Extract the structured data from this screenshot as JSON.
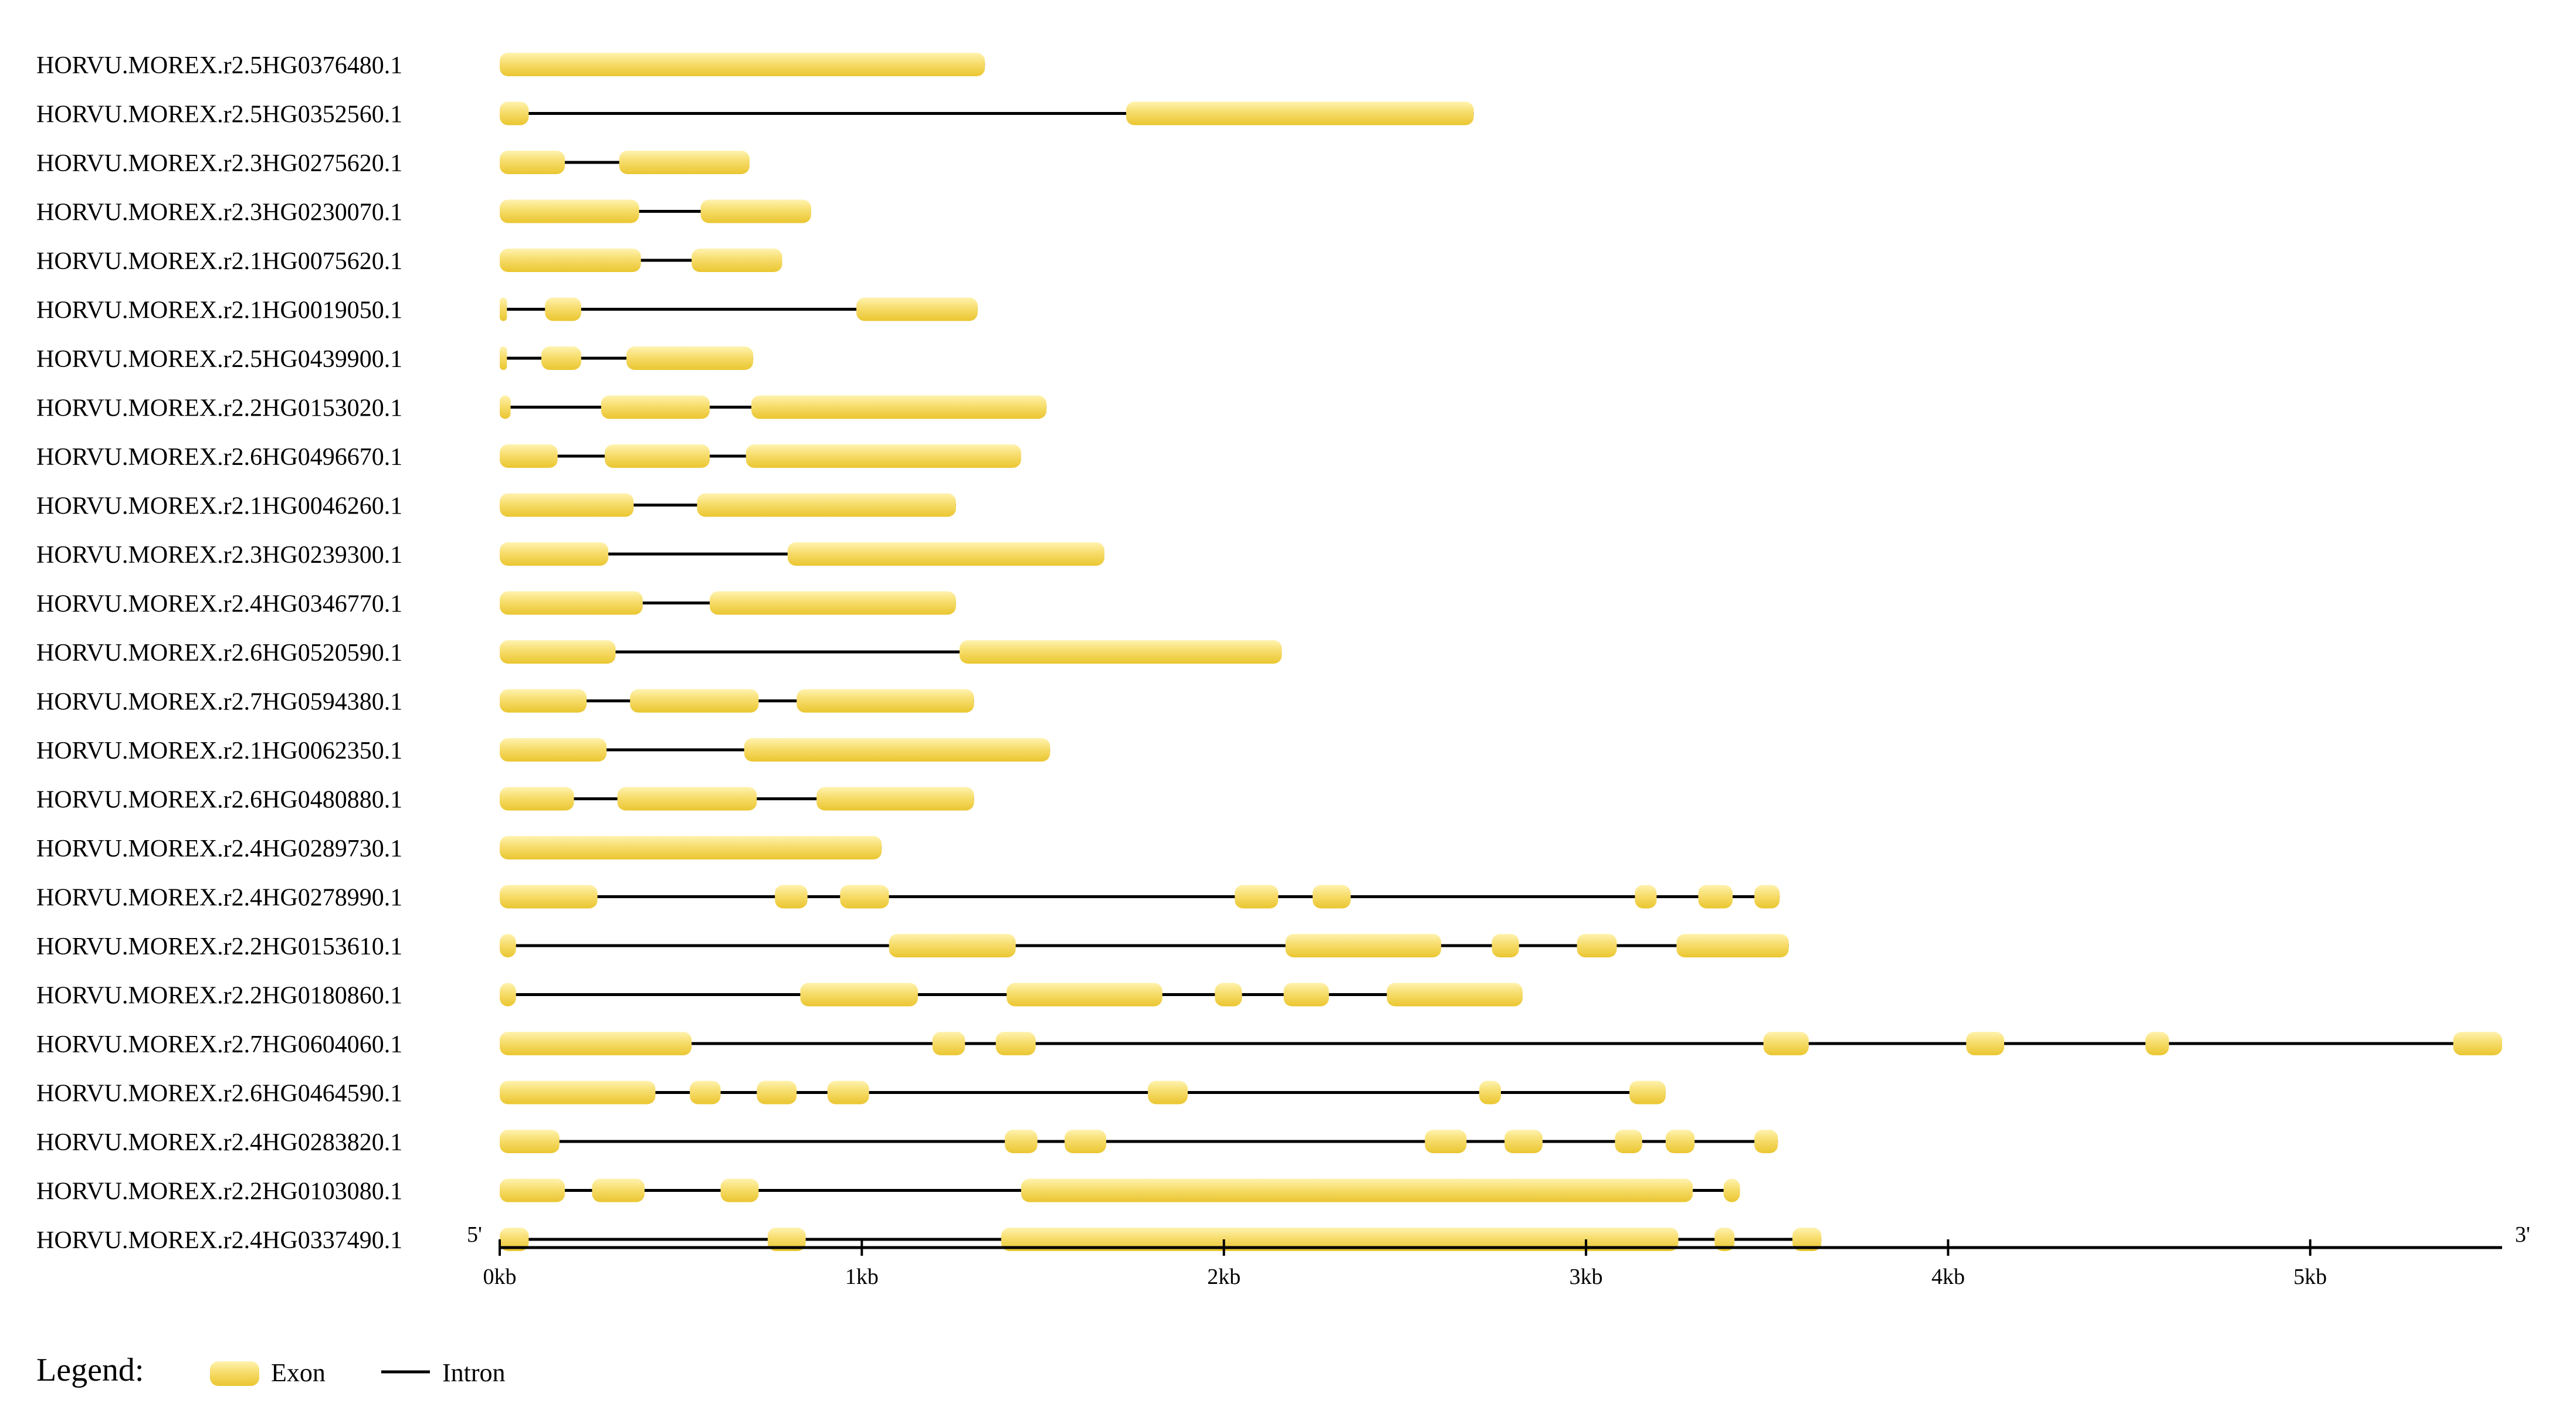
{
  "colors": {
    "exon_light": "#FFF3B0",
    "exon_mid": "#F7DD6C",
    "exon_dark": "#EAC630",
    "intron": "#000000",
    "axis": "#000000",
    "text": "#000000"
  },
  "axis": {
    "start_label": "5'",
    "end_label": "3'",
    "unit": "kb",
    "ticks": [
      {
        "value": 0,
        "label": "0kb"
      },
      {
        "value": 1000,
        "label": "1kb"
      },
      {
        "value": 2000,
        "label": "2kb"
      },
      {
        "value": 3000,
        "label": "3kb"
      },
      {
        "value": 4000,
        "label": "4kb"
      },
      {
        "value": 5000,
        "label": "5kb"
      }
    ],
    "max_bp": 5530
  },
  "legend": {
    "title": "Legend:",
    "exon_label": "Exon",
    "intron_label": "Intron"
  },
  "genes": [
    {
      "name": "HORVU.MOREX.r2.5HG0376480.1",
      "length": 1340,
      "exons": [
        [
          0,
          1340
        ]
      ]
    },
    {
      "name": "HORVU.MOREX.r2.5HG0352560.1",
      "length": 2690,
      "exons": [
        [
          0,
          80
        ],
        [
          1730,
          2690
        ]
      ]
    },
    {
      "name": "HORVU.MOREX.r2.3HG0275620.1",
      "length": 690,
      "exons": [
        [
          0,
          180
        ],
        [
          330,
          690
        ]
      ]
    },
    {
      "name": "HORVU.MOREX.r2.3HG0230070.1",
      "length": 860,
      "exons": [
        [
          0,
          385
        ],
        [
          555,
          860
        ]
      ]
    },
    {
      "name": "HORVU.MOREX.r2.1HG0075620.1",
      "length": 780,
      "exons": [
        [
          0,
          390
        ],
        [
          530,
          780
        ]
      ]
    },
    {
      "name": "HORVU.MOREX.r2.1HG0019050.1",
      "length": 1320,
      "exons": [
        [
          0,
          20
        ],
        [
          125,
          225
        ],
        [
          985,
          1320
        ]
      ]
    },
    {
      "name": "HORVU.MOREX.r2.5HG0439900.1",
      "length": 700,
      "exons": [
        [
          0,
          20
        ],
        [
          115,
          225
        ],
        [
          350,
          700
        ]
      ]
    },
    {
      "name": "HORVU.MOREX.r2.2HG0153020.1",
      "length": 1510,
      "exons": [
        [
          0,
          30
        ],
        [
          280,
          580
        ],
        [
          695,
          1510
        ]
      ]
    },
    {
      "name": "HORVU.MOREX.r2.6HG0496670.1",
      "length": 1440,
      "exons": [
        [
          0,
          160
        ],
        [
          290,
          580
        ],
        [
          680,
          1440
        ]
      ]
    },
    {
      "name": "HORVU.MOREX.r2.1HG0046260.1",
      "length": 1260,
      "exons": [
        [
          0,
          370
        ],
        [
          545,
          1260
        ]
      ]
    },
    {
      "name": "HORVU.MOREX.r2.3HG0239300.1",
      "length": 1670,
      "exons": [
        [
          0,
          300
        ],
        [
          795,
          1670
        ]
      ]
    },
    {
      "name": "HORVU.MOREX.r2.4HG0346770.1",
      "length": 1260,
      "exons": [
        [
          0,
          395
        ],
        [
          580,
          1260
        ]
      ]
    },
    {
      "name": "HORVU.MOREX.r2.6HG0520590.1",
      "length": 2160,
      "exons": [
        [
          0,
          320
        ],
        [
          1270,
          2160
        ]
      ]
    },
    {
      "name": "HORVU.MOREX.r2.7HG0594380.1",
      "length": 1310,
      "exons": [
        [
          0,
          240
        ],
        [
          360,
          715
        ],
        [
          820,
          1310
        ]
      ]
    },
    {
      "name": "HORVU.MOREX.r2.1HG0062350.1",
      "length": 1520,
      "exons": [
        [
          0,
          295
        ],
        [
          675,
          1520
        ]
      ]
    },
    {
      "name": "HORVU.MOREX.r2.6HG0480880.1",
      "length": 1310,
      "exons": [
        [
          0,
          205
        ],
        [
          325,
          710
        ],
        [
          875,
          1310
        ]
      ]
    },
    {
      "name": "HORVU.MOREX.r2.4HG0289730.1",
      "length": 1055,
      "exons": [
        [
          0,
          1055
        ]
      ]
    },
    {
      "name": "HORVU.MOREX.r2.4HG0278990.1",
      "length": 3535,
      "exons": [
        [
          0,
          270
        ],
        [
          760,
          850
        ],
        [
          940,
          1075
        ],
        [
          2030,
          2150
        ],
        [
          2245,
          2350
        ],
        [
          3135,
          3195
        ],
        [
          3310,
          3405
        ],
        [
          3465,
          3535
        ]
      ]
    },
    {
      "name": "HORVU.MOREX.r2.2HG0153610.1",
      "length": 3560,
      "exons": [
        [
          0,
          45
        ],
        [
          1075,
          1425
        ],
        [
          2170,
          2600
        ],
        [
          2740,
          2815
        ],
        [
          2975,
          3085
        ],
        [
          3250,
          3560
        ]
      ]
    },
    {
      "name": "HORVU.MOREX.r2.2HG0180860.1",
      "length": 2825,
      "exons": [
        [
          0,
          45
        ],
        [
          830,
          1155
        ],
        [
          1400,
          1830
        ],
        [
          1975,
          2050
        ],
        [
          2165,
          2290
        ],
        [
          2450,
          2825
        ]
      ]
    },
    {
      "name": "HORVU.MOREX.r2.7HG0604060.1",
      "length": 5530,
      "exons": [
        [
          0,
          530
        ],
        [
          1195,
          1285
        ],
        [
          1370,
          1480
        ],
        [
          3490,
          3615
        ],
        [
          4050,
          4155
        ],
        [
          4545,
          4610
        ],
        [
          5395,
          5530
        ]
      ]
    },
    {
      "name": "HORVU.MOREX.r2.6HG0464590.1",
      "length": 3220,
      "exons": [
        [
          0,
          430
        ],
        [
          525,
          610
        ],
        [
          710,
          820
        ],
        [
          905,
          1020
        ],
        [
          1790,
          1900
        ],
        [
          2705,
          2765
        ],
        [
          3120,
          3220
        ]
      ]
    },
    {
      "name": "HORVU.MOREX.r2.4HG0283820.1",
      "length": 3530,
      "exons": [
        [
          0,
          165
        ],
        [
          1395,
          1485
        ],
        [
          1560,
          1675
        ],
        [
          2555,
          2670
        ],
        [
          2775,
          2880
        ],
        [
          3080,
          3155
        ],
        [
          3220,
          3300
        ],
        [
          3465,
          3530
        ]
      ]
    },
    {
      "name": "HORVU.MOREX.r2.2HG0103080.1",
      "length": 3425,
      "exons": [
        [
          0,
          180
        ],
        [
          255,
          400
        ],
        [
          610,
          715
        ],
        [
          1440,
          3295
        ],
        [
          3380,
          3425
        ]
      ]
    },
    {
      "name": "HORVU.MOREX.r2.4HG0337490.1",
      "length": 3650,
      "exons": [
        [
          0,
          80
        ],
        [
          740,
          845
        ],
        [
          1385,
          3255
        ],
        [
          3355,
          3410
        ],
        [
          3570,
          3650
        ]
      ]
    }
  ]
}
